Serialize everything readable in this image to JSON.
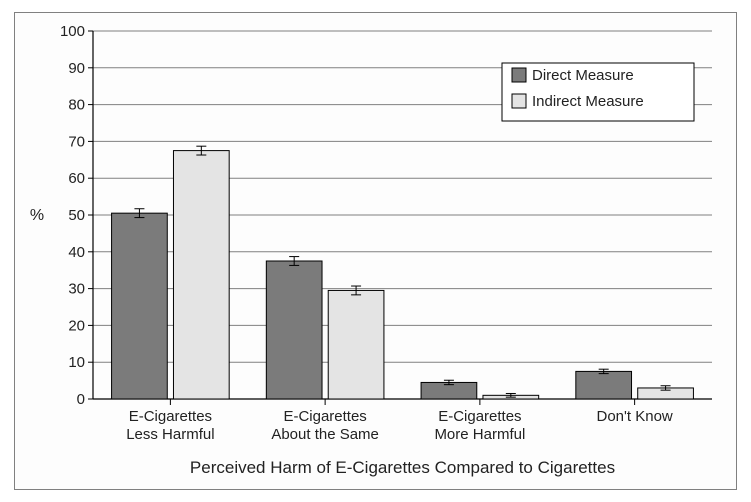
{
  "chart": {
    "type": "bar",
    "ylabel": "%",
    "xlabel": "Perceived Harm of E-Cigarettes Compared to Cigarettes",
    "categories": [
      "E-Cigarettes\nLess Harmful",
      "E-Cigarettes\nAbout the Same",
      "E-Cigarettes\nMore Harmful",
      "Don't Know"
    ],
    "series": [
      {
        "name": "Direct Measure",
        "color": "#7b7b7b",
        "values": [
          50.5,
          37.5,
          4.5,
          7.5
        ],
        "errors": [
          1.2,
          1.2,
          0.6,
          0.6
        ]
      },
      {
        "name": "Indirect Measure",
        "color": "#e4e4e4",
        "values": [
          67.5,
          29.5,
          1.0,
          3.0
        ],
        "errors": [
          1.2,
          1.2,
          0.5,
          0.6
        ]
      }
    ],
    "ylim": [
      0,
      100
    ],
    "ytick_step": 10,
    "bar_border": "#000000",
    "grid_color": "#808080",
    "axis_color": "#000000",
    "background_color": "#fdfdfd",
    "legend_border": "#000000",
    "text_color": "#222222",
    "label_fontsize": 16,
    "tick_fontsize": 15,
    "bar_width": 0.36,
    "bar_gap_within": 0.04,
    "error_cap_width": 10
  }
}
